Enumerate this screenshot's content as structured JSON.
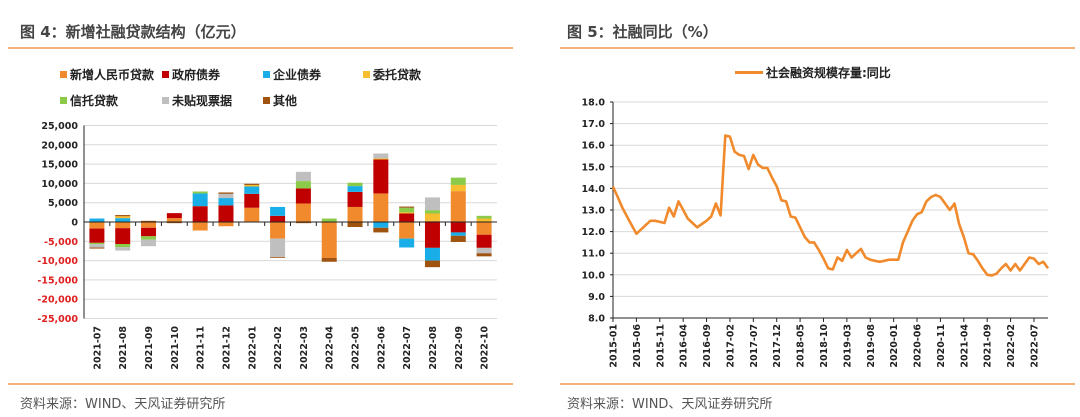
{
  "left": {
    "title": "图 4：新增社融贷款结构（亿元）",
    "source": "资料来源：WIND、天风证券研究所"
  },
  "right": {
    "title": "图 5：社融同比（%）",
    "source": "资料来源：WIND、天风证券研究所"
  },
  "chart_data": [
    {
      "type": "bar",
      "stacked": true,
      "categories": [
        "2021-07",
        "2021-08",
        "2021-09",
        "2021-10",
        "2021-11",
        "2021-12",
        "2022-01",
        "2022-02",
        "2022-03",
        "2022-04",
        "2022-05",
        "2022-06",
        "2022-07",
        "2022-08",
        "2022-09",
        "2022-10"
      ],
      "ylim": [
        -25000,
        25000
      ],
      "yticks": [
        "25,000",
        "20,000",
        "15,000",
        "10,000",
        "5,000",
        "0",
        "-5,000",
        "-10,000",
        "-15,000",
        "-20,000",
        "-25,000"
      ],
      "ytick_values": [
        25000,
        20000,
        15000,
        10000,
        5000,
        0,
        -5000,
        -10000,
        -15000,
        -20000,
        -25000
      ],
      "negative_tick_color": "#E02020",
      "grid": true,
      "legend_position": "top",
      "series": [
        {
          "name": "新增人民币贷款",
          "color": "#F08A2C",
          "values": [
            -1700,
            -1600,
            -1500,
            1000,
            -2200,
            -1100,
            3700,
            -4300,
            4800,
            -9300,
            3900,
            7400,
            -4300,
            300,
            8000,
            -3300
          ]
        },
        {
          "name": "政府债券",
          "color": "#C00000",
          "values": [
            -3700,
            -4100,
            -2200,
            1300,
            4100,
            4300,
            3600,
            1600,
            3900,
            0,
            3900,
            8800,
            2200,
            -6700,
            -2700,
            -3400
          ]
        },
        {
          "name": "企业债券",
          "color": "#1AAEE8",
          "values": [
            900,
            1000,
            0,
            0,
            3300,
            1900,
            1900,
            2300,
            0,
            0,
            1500,
            -1500,
            -2300,
            -3300,
            -870,
            0
          ]
        },
        {
          "name": "委托贷款",
          "color": "#F6BE2E",
          "values": [
            0,
            500,
            0,
            0,
            0,
            0,
            400,
            0,
            0,
            0,
            0,
            260,
            300,
            1900,
            1600,
            900
          ]
        },
        {
          "name": "信托贷款",
          "color": "#8CCB4A",
          "values": [
            -350,
            -800,
            -870,
            0,
            500,
            0,
            0,
            0,
            1900,
            900,
            870,
            0,
            1200,
            870,
            1900,
            700
          ]
        },
        {
          "name": "未贴现票据",
          "color": "#BFBFBF",
          "values": [
            -870,
            -900,
            -1700,
            0,
            0,
            1100,
            0,
            -4800,
            2400,
            0,
            0,
            1300,
            0,
            3300,
            0,
            -1400
          ]
        },
        {
          "name": "其他",
          "color": "#A0520F",
          "values": [
            -260,
            300,
            300,
            -300,
            0,
            350,
            300,
            -200,
            -300,
            -1000,
            -1300,
            -1200,
            300,
            -1700,
            -1600,
            -800
          ]
        }
      ]
    },
    {
      "type": "line",
      "ylim": [
        8,
        18
      ],
      "yticks": [
        "18.0",
        "17.0",
        "16.0",
        "15.0",
        "14.0",
        "13.0",
        "12.0",
        "11.0",
        "10.0",
        "9.0",
        "8.0"
      ],
      "ytick_values": [
        18,
        17,
        16,
        15,
        14,
        13,
        12,
        11,
        10,
        9,
        8
      ],
      "grid": true,
      "legend_position": "top",
      "x_start": "2015-01",
      "x_end": "2022-10",
      "xtick_labels": [
        "2015-01",
        "2015-06",
        "2015-11",
        "2016-04",
        "2016-09",
        "2017-02",
        "2017-07",
        "2017-12",
        "2018-05",
        "2018-10",
        "2019-03",
        "2019-08",
        "2020-01",
        "2020-06",
        "2020-11",
        "2021-04",
        "2021-09",
        "2022-02",
        "2022-07"
      ],
      "series": [
        {
          "name": "社会融资规模存量:同比",
          "color": "#F08A2C",
          "values": [
            14.08,
            13.6,
            13.1,
            12.7,
            12.3,
            11.9,
            12.1,
            12.3,
            12.5,
            12.5,
            12.45,
            12.4,
            13.1,
            12.7,
            13.4,
            13.0,
            12.6,
            12.4,
            12.2,
            12.35,
            12.5,
            12.7,
            13.3,
            12.75,
            16.45,
            16.4,
            15.7,
            15.55,
            15.5,
            14.9,
            15.55,
            15.1,
            14.95,
            14.95,
            14.5,
            14.1,
            13.45,
            13.4,
            12.7,
            12.65,
            12.2,
            11.75,
            11.5,
            11.5,
            11.15,
            10.75,
            10.3,
            10.25,
            10.8,
            10.65,
            11.15,
            10.8,
            11.0,
            11.2,
            10.8,
            10.7,
            10.65,
            10.6,
            10.65,
            10.7,
            10.7,
            10.7,
            11.5,
            12.0,
            12.5,
            12.8,
            12.9,
            13.4,
            13.6,
            13.7,
            13.6,
            13.3,
            13.0,
            13.3,
            12.35,
            11.75,
            11.0,
            10.95,
            10.65,
            10.3,
            10.0,
            9.97,
            10.05,
            10.3,
            10.5,
            10.2,
            10.5,
            10.2,
            10.5,
            10.8,
            10.75,
            10.5,
            10.6,
            10.3
          ]
        }
      ]
    }
  ]
}
